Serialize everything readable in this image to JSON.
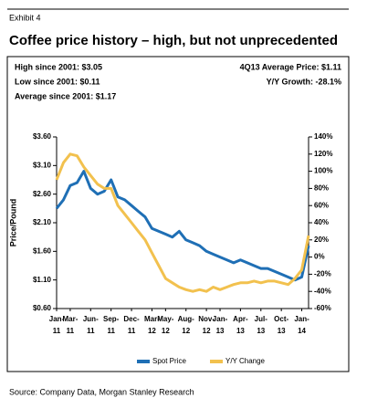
{
  "chart_data": {
    "type": "line",
    "exhibit": "Exhibit 4",
    "title": "Coffee price history – high, but not unprecedented",
    "annotations_left": [
      "High since 2001: $3.05",
      "Low since 2001: $0.11",
      "Average since 2001: $1.17"
    ],
    "annotations_right": [
      "4Q13 Average Price: $1.11",
      "Y/Y Growth: -28.1%"
    ],
    "ylabel": "Price/Pound",
    "source": "Source: Company Data, Morgan Stanley Research",
    "categories": [
      "Jan-11",
      null,
      "Mar-11",
      null,
      null,
      "Jun-11",
      null,
      null,
      "Sep-11",
      null,
      null,
      "Dec-11",
      null,
      null,
      "Mar-12",
      null,
      "May-12",
      null,
      null,
      "Aug-12",
      null,
      null,
      "Nov-12",
      null,
      "Jan-13",
      null,
      null,
      "Apr-13",
      null,
      null,
      "Jul-13",
      null,
      null,
      "Oct-13",
      null,
      null,
      "Jan-14",
      null
    ],
    "ylim": [
      0.6,
      3.6
    ],
    "yticks": [
      {
        "value": 0.6,
        "label": "$0.60"
      },
      {
        "value": 1.1,
        "label": "$1.10"
      },
      {
        "value": 1.6,
        "label": "$1.60"
      },
      {
        "value": 2.1,
        "label": "$2.10"
      },
      {
        "value": 2.6,
        "label": "$2.60"
      },
      {
        "value": 3.1,
        "label": "$3.10"
      },
      {
        "value": 3.6,
        "label": "$3.60"
      }
    ],
    "y2lim": [
      -60,
      140
    ],
    "y2ticks": [
      {
        "value": -60,
        "label": "-60%"
      },
      {
        "value": -40,
        "label": "-40%"
      },
      {
        "value": -20,
        "label": "-20%"
      },
      {
        "value": 0,
        "label": "0%"
      },
      {
        "value": 20,
        "label": "20%"
      },
      {
        "value": 40,
        "label": "40%"
      },
      {
        "value": 60,
        "label": "60%"
      },
      {
        "value": 80,
        "label": "80%"
      },
      {
        "value": 100,
        "label": "100%"
      },
      {
        "value": 120,
        "label": "120%"
      },
      {
        "value": 140,
        "label": "140%"
      }
    ],
    "series": [
      {
        "name": "Spot Price",
        "color": "#1f6fb5",
        "values": [
          2.35,
          2.5,
          2.75,
          2.8,
          3.0,
          2.7,
          2.6,
          2.65,
          2.85,
          2.55,
          2.5,
          2.4,
          2.3,
          2.2,
          2.0,
          1.95,
          1.9,
          1.85,
          1.95,
          1.8,
          1.75,
          1.7,
          1.6,
          1.55,
          1.5,
          1.45,
          1.4,
          1.45,
          1.4,
          1.35,
          1.3,
          1.3,
          1.25,
          1.2,
          1.15,
          1.1,
          1.15,
          1.7
        ]
      },
      {
        "name": "Y/Y Change",
        "color": "#f2c14e",
        "axis": "y2",
        "values": [
          90,
          110,
          120,
          118,
          105,
          95,
          85,
          80,
          80,
          60,
          50,
          40,
          30,
          20,
          5,
          -10,
          -25,
          -30,
          -35,
          -38,
          -40,
          -38,
          -40,
          -35,
          -38,
          -35,
          -32,
          -30,
          -30,
          -28,
          -30,
          -28,
          -28,
          -30,
          -32,
          -25,
          -15,
          25
        ]
      }
    ]
  }
}
